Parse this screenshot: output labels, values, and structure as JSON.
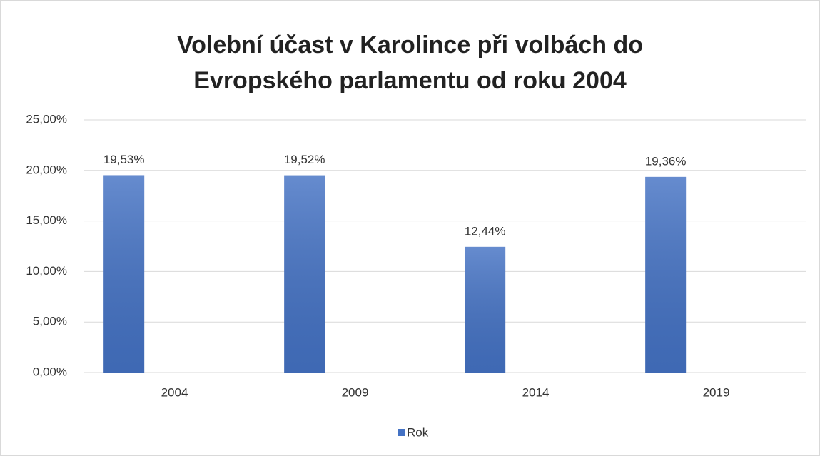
{
  "chart_data": {
    "type": "bar",
    "title": "Volební účast v Karolince při volbách do\nEvropského parlamentu od roku 2004",
    "categories": [
      "2004",
      "2009",
      "2014",
      "2019"
    ],
    "series": [
      {
        "name": "Rok",
        "color": "#4472c4",
        "values": [
          19.53,
          19.52,
          12.44,
          19.36
        ],
        "value_labels": [
          "19,53%",
          "19,52%",
          "12,44%",
          "19,36%"
        ]
      }
    ],
    "ylim": [
      0,
      25
    ],
    "yticks": [
      {
        "value": 0,
        "label": "0,00%"
      },
      {
        "value": 5,
        "label": "5,00%"
      },
      {
        "value": 10,
        "label": "10,00%"
      },
      {
        "value": 15,
        "label": "15,00%"
      },
      {
        "value": 20,
        "label": "20,00%"
      },
      {
        "value": 25,
        "label": "25,00%"
      }
    ],
    "grid": true,
    "legend": "bottom"
  }
}
